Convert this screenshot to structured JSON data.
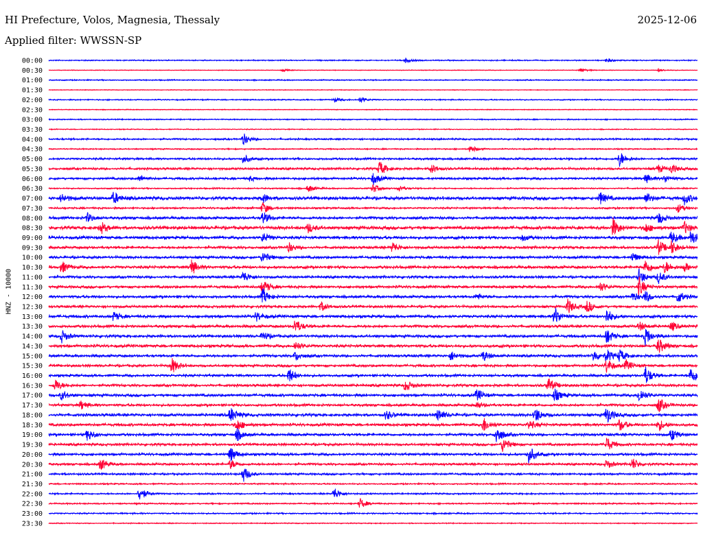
{
  "header": {
    "title": "HI Prefecture, Volos, Magnesia, Thessaly",
    "date": "2025-12-06",
    "filter": "Applied filter: WWSSN-SP"
  },
  "chart_data": {
    "type": "line",
    "title": "HI Prefecture, Volos, Magnesia, Thessaly",
    "subtitle": "Applied filter: WWSSN-SP",
    "ylabel": "HNZ - 10000",
    "xlabel": "",
    "colors": [
      "#0000ff",
      "#ff0033"
    ],
    "rows": [
      "00:00",
      "00:30",
      "01:00",
      "01:30",
      "02:00",
      "02:30",
      "03:00",
      "03:30",
      "04:00",
      "04:30",
      "05:00",
      "05:30",
      "06:00",
      "06:30",
      "07:00",
      "07:30",
      "08:00",
      "08:30",
      "09:00",
      "09:30",
      "10:00",
      "10:30",
      "11:00",
      "11:30",
      "12:00",
      "12:30",
      "13:00",
      "13:30",
      "14:00",
      "14:30",
      "15:00",
      "15:30",
      "16:00",
      "16:30",
      "17:00",
      "17:30",
      "18:00",
      "18:30",
      "19:00",
      "19:30",
      "20:00",
      "20:30",
      "21:00",
      "21:30",
      "22:00",
      "22:30",
      "23:00",
      "23:30"
    ],
    "noise_level": [
      1,
      0.6,
      1,
      0.6,
      1,
      0.7,
      1,
      0.8,
      1.5,
      1.1,
      1.8,
      2.0,
      2.0,
      1.2,
      2.8,
      1.6,
      2.4,
      2.9,
      2.6,
      2.3,
      2.3,
      2.5,
      2.2,
      2.3,
      2.3,
      2.2,
      2.5,
      2.4,
      2.4,
      2.5,
      2.3,
      2.2,
      2.2,
      2.3,
      2.4,
      2.2,
      2.5,
      2.4,
      2.3,
      2.2,
      2.2,
      2.0,
      1.8,
      1.3,
      1.4,
      1.3,
      1.3,
      0.9
    ],
    "events": [
      [
        [
          0.55,
          1.5
        ],
        [
          0.86,
          1.3
        ]
      ],
      [
        [
          0.36,
          1
        ],
        [
          0.82,
          1.5
        ],
        [
          0.94,
          1
        ]
      ],
      [],
      [],
      [
        [
          0.44,
          1.5
        ],
        [
          0.48,
          2
        ]
      ],
      [],
      [],
      [],
      [
        [
          0.3,
          4
        ]
      ],
      [
        [
          0.65,
          2.5
        ]
      ],
      [
        [
          0.3,
          3
        ],
        [
          0.88,
          5
        ]
      ],
      [
        [
          0.51,
          5
        ],
        [
          0.59,
          3
        ],
        [
          0.94,
          2.5
        ],
        [
          0.96,
          3
        ]
      ],
      [
        [
          0.14,
          2
        ],
        [
          0.31,
          1.5
        ],
        [
          0.5,
          4
        ],
        [
          0.92,
          3
        ],
        [
          0.95,
          2.5
        ]
      ],
      [
        [
          0.4,
          2.5
        ],
        [
          0.5,
          3
        ],
        [
          0.54,
          2
        ]
      ],
      [
        [
          0.02,
          3
        ],
        [
          0.1,
          4
        ],
        [
          0.33,
          3
        ],
        [
          0.85,
          4
        ],
        [
          0.92,
          3.5
        ],
        [
          0.98,
          4
        ]
      ],
      [
        [
          0.33,
          4
        ],
        [
          0.97,
          3
        ]
      ],
      [
        [
          0.06,
          3
        ],
        [
          0.33,
          4
        ],
        [
          0.94,
          4
        ]
      ],
      [
        [
          0.08,
          4
        ],
        [
          0.4,
          3
        ],
        [
          0.87,
          6
        ],
        [
          0.92,
          3
        ],
        [
          0.98,
          4
        ]
      ],
      [
        [
          0.33,
          3
        ],
        [
          0.73,
          2
        ],
        [
          0.96,
          4
        ],
        [
          0.99,
          5
        ]
      ],
      [
        [
          0.37,
          3
        ],
        [
          0.53,
          3.5
        ],
        [
          0.94,
          5
        ],
        [
          0.96,
          4
        ]
      ],
      [
        [
          0.33,
          4
        ],
        [
          0.9,
          3
        ]
      ],
      [
        [
          0.02,
          4
        ],
        [
          0.22,
          5
        ],
        [
          0.92,
          5
        ],
        [
          0.95,
          4
        ],
        [
          0.98,
          3
        ]
      ],
      [
        [
          0.3,
          4
        ],
        [
          0.91,
          5
        ],
        [
          0.94,
          4
        ]
      ],
      [
        [
          0.33,
          5
        ],
        [
          0.85,
          3
        ],
        [
          0.91,
          6
        ]
      ],
      [
        [
          0.33,
          5
        ],
        [
          0.66,
          2
        ],
        [
          0.9,
          3
        ],
        [
          0.92,
          3.5
        ],
        [
          0.97,
          4
        ]
      ],
      [
        [
          0.42,
          3
        ],
        [
          0.8,
          5
        ],
        [
          0.83,
          4
        ]
      ],
      [
        [
          0.1,
          3
        ],
        [
          0.32,
          3
        ],
        [
          0.78,
          6
        ],
        [
          0.86,
          5
        ]
      ],
      [
        [
          0.38,
          5
        ],
        [
          0.91,
          3
        ],
        [
          0.96,
          3
        ]
      ],
      [
        [
          0.02,
          4
        ],
        [
          0.33,
          3
        ],
        [
          0.86,
          5
        ],
        [
          0.92,
          6
        ]
      ],
      [
        [
          0.38,
          3
        ],
        [
          0.94,
          5
        ]
      ],
      [
        [
          0.38,
          3
        ],
        [
          0.62,
          3
        ],
        [
          0.67,
          3.5
        ],
        [
          0.84,
          4
        ],
        [
          0.86,
          4
        ],
        [
          0.88,
          4
        ]
      ],
      [
        [
          0.19,
          5
        ],
        [
          0.86,
          5
        ],
        [
          0.89,
          3.5
        ]
      ],
      [
        [
          0.37,
          5
        ],
        [
          0.92,
          6
        ],
        [
          0.99,
          6
        ]
      ],
      [
        [
          0.01,
          4
        ],
        [
          0.55,
          4
        ],
        [
          0.77,
          5
        ]
      ],
      [
        [
          0.02,
          3
        ],
        [
          0.66,
          4
        ],
        [
          0.78,
          4
        ],
        [
          0.91,
          5
        ]
      ],
      [
        [
          0.05,
          3
        ],
        [
          0.66,
          2
        ],
        [
          0.94,
          5
        ]
      ],
      [
        [
          0.28,
          5
        ],
        [
          0.52,
          3
        ],
        [
          0.6,
          4
        ],
        [
          0.75,
          5
        ],
        [
          0.86,
          6
        ]
      ],
      [
        [
          0.29,
          4
        ],
        [
          0.67,
          5
        ],
        [
          0.74,
          3
        ],
        [
          0.88,
          4
        ],
        [
          0.94,
          4
        ]
      ],
      [
        [
          0.06,
          4
        ],
        [
          0.29,
          4
        ],
        [
          0.69,
          6
        ],
        [
          0.96,
          4
        ]
      ],
      [
        [
          0.7,
          5
        ],
        [
          0.86,
          5
        ]
      ],
      [
        [
          0.28,
          5
        ],
        [
          0.74,
          6
        ]
      ],
      [
        [
          0.08,
          4
        ],
        [
          0.28,
          3
        ],
        [
          0.86,
          3
        ],
        [
          0.9,
          4
        ]
      ],
      [
        [
          0.3,
          5
        ]
      ],
      [],
      [
        [
          0.14,
          5
        ],
        [
          0.44,
          4
        ]
      ],
      [
        [
          0.48,
          3.5
        ]
      ],
      [],
      []
    ]
  }
}
